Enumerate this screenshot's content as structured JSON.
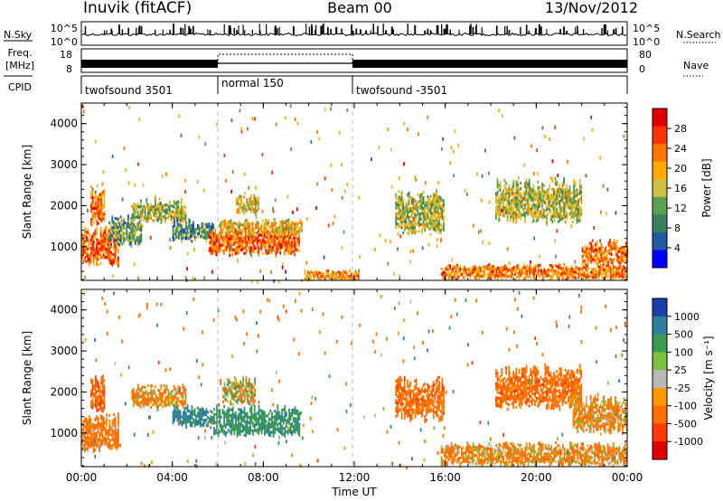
{
  "header": {
    "station": "Inuvik (fitACF)",
    "beam": "Beam 00",
    "date": "13/Nov/2012"
  },
  "noise_panel": {
    "left_label": "N.Sky",
    "left_ticks": [
      "10^5",
      "10^0"
    ],
    "right_ticks": [
      "10^5",
      "10^0"
    ],
    "right_label": "N.Search"
  },
  "freq_panel": {
    "left_label_1": "Freq.",
    "left_label_2": "[MHz]",
    "left_ticks": [
      "18",
      "8"
    ],
    "right_ticks": [
      "80",
      "0"
    ],
    "right_label": "Nave"
  },
  "cpid": {
    "label": "CPID",
    "segments": [
      {
        "name": "twofsound 3501",
        "start": 0,
        "end": 6
      },
      {
        "name": "normal 150",
        "start": 6,
        "end": 12
      },
      {
        "name": "twofsound -3501",
        "start": 12,
        "end": 24
      }
    ]
  },
  "x_axis": {
    "ticks": [
      "00:00",
      "04:00",
      "08:00",
      "12:00",
      "16:00",
      "20:00",
      "00:00"
    ],
    "tick_hours": [
      0,
      4,
      8,
      12,
      16,
      20,
      24
    ],
    "label": "Time UT"
  },
  "power_colorbar": {
    "label": "Power [dB]",
    "ticks": [
      "28",
      "24",
      "20",
      "16",
      "12",
      "8",
      "4"
    ],
    "colors": [
      "#e00000",
      "#ff3300",
      "#ff7700",
      "#ffaa00",
      "#d0c040",
      "#5aa050",
      "#3a8060",
      "#1e5aa0",
      "#0000ff"
    ]
  },
  "velocity_colorbar": {
    "label": "Velocity [m s⁻¹]",
    "ticks": [
      "1000",
      "500",
      "100",
      "25",
      "-25",
      "-100",
      "-500",
      "-1000"
    ],
    "colors": [
      "#1a3fa8",
      "#2e7ea0",
      "#3a9a50",
      "#7cc040",
      "#b8b8b8",
      "#ff9900",
      "#ff7000",
      "#ff3a00",
      "#e00000"
    ]
  },
  "chart_data": [
    {
      "type": "heatmap",
      "panel": "Power",
      "ylabel": "Slant Range [km]",
      "yticks": [
        1000,
        2000,
        3000,
        4000
      ],
      "ylim": [
        180,
        4500
      ],
      "xlim": [
        0,
        24
      ],
      "colorbar_label": "Power [dB]",
      "regions": [
        {
          "t0": 0.0,
          "t1": 1.6,
          "r0": 550,
          "r1": 1500,
          "v": 24
        },
        {
          "t0": 0.4,
          "t1": 1.0,
          "r0": 1500,
          "r1": 2500,
          "v": 22
        },
        {
          "t0": 1.2,
          "t1": 2.6,
          "r0": 1000,
          "r1": 1800,
          "v": 10
        },
        {
          "t0": 2.2,
          "t1": 4.6,
          "r0": 1600,
          "r1": 2200,
          "v": 14
        },
        {
          "t0": 4.0,
          "t1": 5.8,
          "r0": 1150,
          "r1": 1700,
          "v": 8
        },
        {
          "t0": 5.6,
          "t1": 9.6,
          "r0": 800,
          "r1": 1500,
          "v": 24
        },
        {
          "t0": 6.1,
          "t1": 9.7,
          "r0": 1300,
          "r1": 1700,
          "v": 18
        },
        {
          "t0": 6.8,
          "t1": 7.8,
          "r0": 1800,
          "r1": 2300,
          "v": 16
        },
        {
          "t0": 9.8,
          "t1": 12.2,
          "r0": 200,
          "r1": 450,
          "v": 20
        },
        {
          "t0": 13.8,
          "t1": 15.9,
          "r0": 1300,
          "r1": 2400,
          "v": 14
        },
        {
          "t0": 15.8,
          "t1": 24.0,
          "r0": 220,
          "r1": 600,
          "v": 22
        },
        {
          "t0": 18.2,
          "t1": 22.0,
          "r0": 1600,
          "r1": 2700,
          "v": 14
        },
        {
          "t0": 22.0,
          "t1": 24.0,
          "r0": 550,
          "r1": 1200,
          "v": 22
        }
      ]
    },
    {
      "type": "heatmap",
      "panel": "Velocity",
      "ylabel": "Slant Range [km]",
      "yticks": [
        1000,
        2000,
        3000,
        4000
      ],
      "ylim": [
        180,
        4500
      ],
      "xlim": [
        0,
        24
      ],
      "colorbar_label": "Velocity [m s⁻¹]",
      "regions": [
        {
          "t0": 0.0,
          "t1": 1.6,
          "r0": 550,
          "r1": 1500,
          "v": -250
        },
        {
          "t0": 0.4,
          "t1": 1.0,
          "r0": 1500,
          "r1": 2500,
          "v": -400
        },
        {
          "t0": 2.2,
          "t1": 4.6,
          "r0": 1600,
          "r1": 2200,
          "v": -150
        },
        {
          "t0": 4.0,
          "t1": 5.8,
          "r0": 1150,
          "r1": 1700,
          "v": 600
        },
        {
          "t0": 5.8,
          "t1": 9.6,
          "r0": 900,
          "r1": 1700,
          "v": 400
        },
        {
          "t0": 6.2,
          "t1": 7.6,
          "r0": 1700,
          "r1": 2400,
          "v": 0
        },
        {
          "t0": 13.8,
          "t1": 15.9,
          "r0": 1300,
          "r1": 2400,
          "v": -300
        },
        {
          "t0": 15.8,
          "t1": 24.0,
          "r0": 220,
          "r1": 800,
          "v": -150
        },
        {
          "t0": 18.2,
          "t1": 22.0,
          "r0": 1600,
          "r1": 2700,
          "v": -300
        },
        {
          "t0": 21.6,
          "t1": 24.0,
          "r0": 1000,
          "r1": 2000,
          "v": -150
        }
      ]
    }
  ]
}
